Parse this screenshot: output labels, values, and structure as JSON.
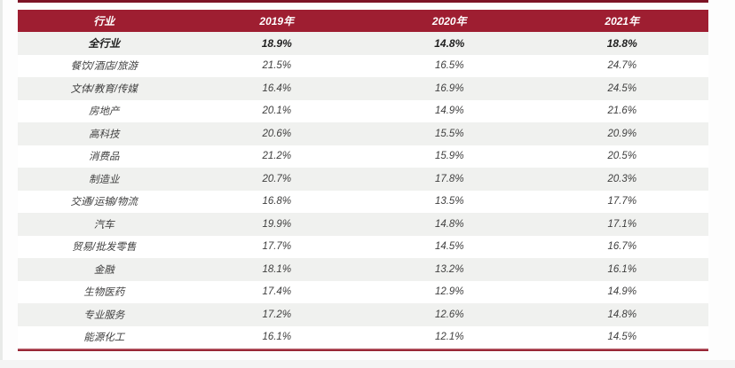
{
  "chart_data": {
    "type": "table",
    "columns": [
      "行业",
      "2019年",
      "2020年",
      "2021年"
    ],
    "rows": [
      [
        "全行业",
        "18.9%",
        "14.8%",
        "18.8%"
      ],
      [
        "餐饮/酒店/旅游",
        "21.5%",
        "16.5%",
        "24.7%"
      ],
      [
        "文体/教育/传媒",
        "16.4%",
        "16.9%",
        "24.5%"
      ],
      [
        "房地产",
        "20.1%",
        "14.9%",
        "21.6%"
      ],
      [
        "高科技",
        "20.6%",
        "15.5%",
        "20.9%"
      ],
      [
        "消费品",
        "21.2%",
        "15.9%",
        "20.5%"
      ],
      [
        "制造业",
        "20.7%",
        "17.8%",
        "20.3%"
      ],
      [
        "交通/运输/物流",
        "16.8%",
        "13.5%",
        "17.7%"
      ],
      [
        "汽车",
        "19.9%",
        "14.8%",
        "17.1%"
      ],
      [
        "贸易/批发零售",
        "17.7%",
        "14.5%",
        "16.7%"
      ],
      [
        "金融",
        "18.1%",
        "13.2%",
        "16.1%"
      ],
      [
        "生物医药",
        "17.4%",
        "12.9%",
        "14.9%"
      ],
      [
        "专业服务",
        "17.2%",
        "12.6%",
        "14.8%"
      ],
      [
        "能源化工",
        "16.1%",
        "12.1%",
        "14.5%"
      ]
    ],
    "emphasized_row": "全行业",
    "layout": {
      "striped": true,
      "header_position": "top"
    }
  },
  "colors": {
    "header_bg": "#9E1E31",
    "header_text": "#FFFFFF",
    "stripe_bg": "#F0F1EF",
    "top_rule": "#7D1325",
    "bottom_rule": "#9E2433",
    "body_text": "#404040"
  }
}
